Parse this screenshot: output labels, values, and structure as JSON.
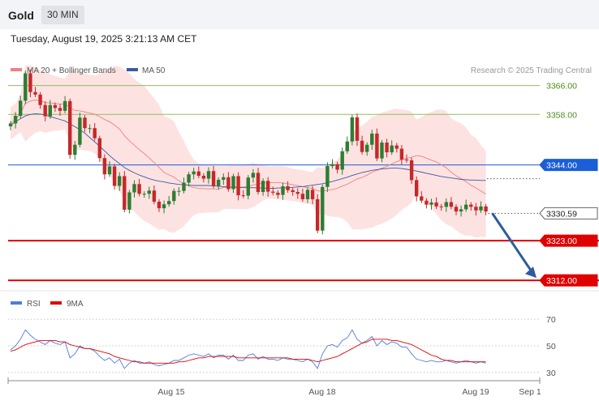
{
  "header": {
    "symbol": "Gold",
    "timeframe": "30 MIN"
  },
  "datetime": "Tuesday, August 19, 2025 3:21:13 AM CET",
  "legend": {
    "ma_bb": "MA 20 + Bollinger Bands",
    "ma50": "MA 50",
    "copyright": "Research © 2025 Trading Central"
  },
  "rsi_legend": {
    "rsi": "RSI",
    "ma9": "9MA"
  },
  "colors": {
    "up": "#2e7d32",
    "down": "#c62828",
    "bb_fill": "#fde2e2",
    "ma20": "#f08080",
    "ma50": "#3a5ba0",
    "resistance": "#8fbf5a",
    "pivot": "#1a5ed8",
    "support": "#e00000",
    "rsi": "#4f7be0",
    "rsi_ma": "#e00000",
    "arrow": "#2f5c9c"
  },
  "chart_data": [
    {
      "type": "candlestick",
      "title": "Gold",
      "ylim": [
        3308,
        3374
      ],
      "x_ticks": [
        "Aug 15",
        "Aug 18",
        "Aug 19",
        "Sep 1"
      ],
      "levels": [
        {
          "value": 3366.0,
          "label": "3366.00",
          "kind": "resistance"
        },
        {
          "value": 3358.0,
          "label": "3358.00",
          "kind": "resistance"
        },
        {
          "value": 3344.0,
          "label": "3344.00",
          "kind": "pivot"
        },
        {
          "value": 3330.59,
          "label": "3330.59",
          "kind": "last"
        },
        {
          "value": 3323.0,
          "label": "3323.00",
          "kind": "support"
        },
        {
          "value": 3312.0,
          "label": "3312.00",
          "kind": "support"
        }
      ],
      "close": [
        3355.5,
        3357.6,
        3361.8,
        3369.4,
        3364.2,
        3363.5,
        3360.6,
        3357.5,
        3360.6,
        3359.8,
        3359.0,
        3361.7,
        3346.8,
        3349.6,
        3357.1,
        3354.2,
        3354.2,
        3351.4,
        3345.9,
        3341.4,
        3343.6,
        3338.2,
        3340.9,
        3331.6,
        3336.4,
        3338.7,
        3336.0,
        3336.0,
        3336.9,
        3333.8,
        3332.0,
        3333.1,
        3334.0,
        3336.8,
        3336.8,
        3339.1,
        3341.4,
        3342.2,
        3341.0,
        3340.2,
        3342.3,
        3338.2,
        3339.9,
        3340.6,
        3337.3,
        3340.9,
        3335.6,
        3335.5,
        3340.5,
        3341.8,
        3336.5,
        3339.6,
        3336.6,
        3336.3,
        3335.7,
        3338.1,
        3337.0,
        3336.5,
        3336.0,
        3334.5,
        3337.1,
        3334.5,
        3325.8,
        3337.9,
        3343.7,
        3344.2,
        3342.7,
        3347.8,
        3350.5,
        3357.2,
        3350.7,
        3347.6,
        3349.6,
        3352.7,
        3345.8,
        3350.2,
        3347.5,
        3349.4,
        3348.5,
        3345.5,
        3345.3,
        3339.8,
        3335.3,
        3334.1,
        3333.0,
        3333.6,
        3332.5,
        3332.4,
        3333.7,
        3332.4,
        3331.1,
        3331.7,
        3333.0,
        3332.4,
        3331.4,
        3332.5,
        3331.1
      ],
      "ohlc_note": "candles drawn from close series with wicks",
      "ma50": [
        3355.0,
        3356.0,
        3356.8,
        3357.6,
        3358.0,
        3358.2,
        3358.1,
        3357.8,
        3357.4,
        3357.0,
        3356.6,
        3356.2,
        3355.4,
        3354.6,
        3353.8,
        3352.8,
        3351.6,
        3350.4,
        3349.2,
        3347.9,
        3346.6,
        3345.4,
        3344.4,
        3343.3,
        3342.5,
        3341.8,
        3341.2,
        3340.7,
        3340.2,
        3339.8,
        3339.5,
        3339.3,
        3339.0,
        3338.8,
        3338.6,
        3338.5,
        3338.4,
        3338.3,
        3338.3,
        3338.3,
        3338.3,
        3338.2,
        3338.1,
        3338.0,
        3337.9,
        3337.8,
        3337.8,
        3337.7,
        3337.7,
        3337.7,
        3337.6,
        3337.6,
        3337.5,
        3337.5,
        3337.6,
        3337.6,
        3337.7,
        3337.8,
        3337.9,
        3338.0,
        3338.2,
        3338.4,
        3338.6,
        3338.8,
        3339.1,
        3339.4,
        3339.8,
        3340.2,
        3340.6,
        3341.1,
        3341.5,
        3341.9,
        3342.2,
        3342.5,
        3342.7,
        3342.9,
        3343.0,
        3343.1,
        3343.1,
        3343.0,
        3342.8,
        3342.6,
        3342.3,
        3342.0,
        3341.7,
        3341.4,
        3341.1,
        3340.8,
        3340.6,
        3340.4,
        3340.2,
        3340.0,
        3339.9,
        3339.8,
        3339.8,
        3339.7,
        3339.7
      ]
    },
    {
      "type": "line",
      "title": "RSI",
      "ylim": [
        25,
        75
      ],
      "y_ticks": [
        70,
        50,
        30
      ],
      "series": [
        {
          "name": "RSI",
          "values": [
            47,
            50,
            55,
            62,
            58,
            55,
            53,
            51,
            54,
            52,
            51,
            53,
            41,
            44,
            50,
            48,
            48,
            46,
            42,
            39,
            41,
            37,
            40,
            33,
            37,
            39,
            37,
            37,
            38,
            36,
            35,
            36,
            37,
            39,
            39,
            41,
            43,
            44,
            43,
            42,
            44,
            41,
            43,
            43,
            40,
            43,
            39,
            39,
            43,
            44,
            40,
            42,
            40,
            40,
            39,
            41,
            40,
            40,
            39,
            38,
            40,
            38,
            33,
            44,
            50,
            51,
            49,
            54,
            56,
            62,
            55,
            52,
            54,
            57,
            50,
            54,
            51,
            53,
            52,
            49,
            49,
            44,
            40,
            39,
            38,
            39,
            38,
            38,
            39,
            38,
            37,
            38,
            39,
            38,
            37,
            38,
            37
          ]
        },
        {
          "name": "9MA",
          "values": [
            46,
            47,
            49,
            51,
            52,
            53,
            54,
            54,
            54,
            54,
            53,
            53,
            51,
            50,
            49,
            48,
            48,
            47,
            46,
            45,
            44,
            42,
            41,
            40,
            39,
            38,
            38,
            37,
            37,
            37,
            37,
            37,
            37,
            37,
            38,
            38,
            39,
            40,
            41,
            41,
            42,
            42,
            42,
            42,
            42,
            42,
            41,
            41,
            41,
            41,
            41,
            41,
            41,
            41,
            41,
            41,
            41,
            40,
            40,
            40,
            40,
            39,
            38,
            39,
            40,
            41,
            42,
            44,
            46,
            48,
            50,
            52,
            53,
            55,
            55,
            55,
            55,
            54,
            54,
            53,
            52,
            51,
            49,
            47,
            45,
            43,
            42,
            40,
            39,
            39,
            38,
            38,
            38,
            38,
            38,
            38,
            38
          ]
        }
      ]
    }
  ]
}
